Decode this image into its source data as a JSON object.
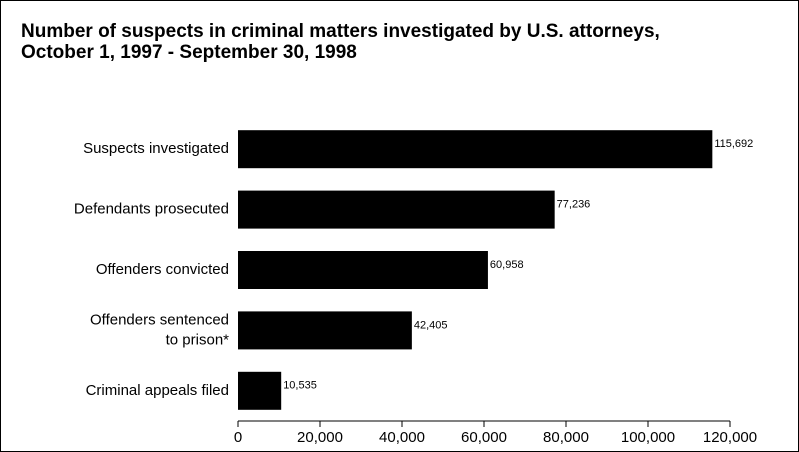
{
  "chart_data": {
    "type": "barh",
    "title": "Number of suspects in criminal matters investigated by U.S. attorneys, October 1, 1997 - September 30, 1998",
    "categories": [
      "Suspects investigated",
      "Defendants prosecuted",
      "Offenders convicted",
      "Offenders sentenced\nto prison*",
      "Criminal appeals filed"
    ],
    "values": [
      115692,
      77236,
      60958,
      42405,
      10535
    ],
    "value_labels": [
      "115,692",
      "77,236",
      "60,958",
      "42,405",
      "10,535"
    ],
    "color": "#000000",
    "xlim": [
      0,
      120000
    ],
    "xticks": [
      0,
      {
        "value": 20000,
        "label": "20,000"
      },
      {
        "value": 40000,
        "label": "40,000"
      },
      {
        "value": 60000,
        "label": "60,000"
      },
      {
        "value": 80000,
        "label": "80,000"
      },
      {
        "value": 100000,
        "label": "100,000"
      },
      {
        "value": 120000,
        "label": "120,000"
      }
    ]
  }
}
